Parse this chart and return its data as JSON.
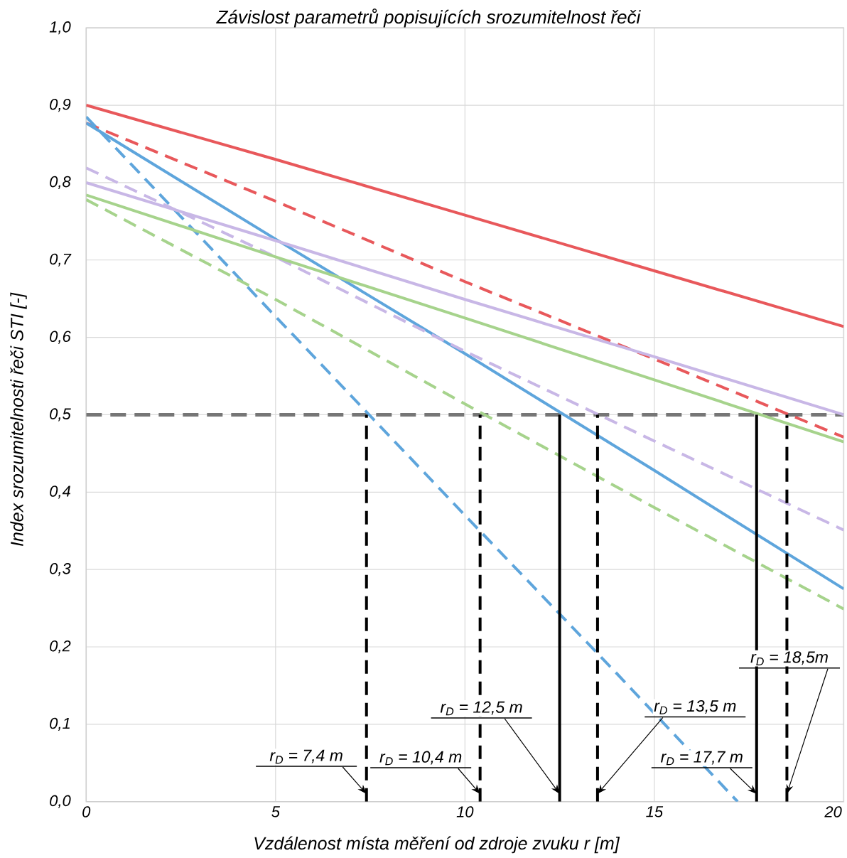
{
  "chart_data": {
    "type": "line",
    "title": "Závislost parametrů popisujících srozumitelnost řeči",
    "xlabel": "Vzdálenost místa měření od zdroje zvuku r [m]",
    "ylabel": "Index srozumitelnosti řeči STI [-]",
    "xlim": [
      0,
      20
    ],
    "xticks": [
      0,
      5,
      10,
      15,
      20
    ],
    "ylim": [
      0,
      1
    ],
    "yticks": [
      {
        "value": 0,
        "label": "0,0"
      },
      {
        "value": 0.1,
        "label": "0,1"
      },
      {
        "value": 0.2,
        "label": "0,2"
      },
      {
        "value": 0.3,
        "label": "0,3"
      },
      {
        "value": 0.4,
        "label": "0,4"
      },
      {
        "value": 0.5,
        "label": "0,5"
      },
      {
        "value": 0.6,
        "label": "0,6"
      },
      {
        "value": 0.7,
        "label": "0,7"
      },
      {
        "value": 0.8,
        "label": "0,8"
      },
      {
        "value": 0.9,
        "label": "0,9"
      },
      {
        "value": 1,
        "label": "1,0"
      }
    ],
    "grid": true,
    "series": [
      {
        "color": "#e8585b",
        "line_style": "solid",
        "x": [
          0,
          5,
          10,
          15,
          20
        ],
        "values": [
          0.9,
          0.83,
          0.758,
          0.686,
          0.614
        ]
      },
      {
        "color": "#e8585b",
        "line_style": "dashed",
        "x": [
          0,
          5,
          10,
          15,
          20
        ],
        "values": [
          0.877,
          0.776,
          0.672,
          0.572,
          0.471
        ]
      },
      {
        "color": "#5ea5dc",
        "line_style": "solid",
        "x": [
          0,
          5,
          10,
          15,
          20
        ],
        "values": [
          0.877,
          0.727,
          0.579,
          0.428,
          0.275
        ]
      },
      {
        "color": "#5ea5dc",
        "line_style": "dashed",
        "x": [
          0,
          5,
          10,
          14,
          17.2
        ],
        "values": [
          0.885,
          0.627,
          0.37,
          0.166,
          0
        ]
      },
      {
        "color": "#c8b7e6",
        "line_style": "solid",
        "x": [
          0,
          5,
          10,
          15,
          20
        ],
        "values": [
          0.8,
          0.725,
          0.649,
          0.575,
          0.5
        ]
      },
      {
        "color": "#c8b7e6",
        "line_style": "dashed",
        "x": [
          0,
          5,
          10,
          15,
          20
        ],
        "values": [
          0.819,
          0.704,
          0.582,
          0.466,
          0.351
        ]
      },
      {
        "color": "#a6d38c",
        "line_style": "solid",
        "x": [
          0,
          5,
          10,
          15,
          20
        ],
        "values": [
          0.784,
          0.704,
          0.625,
          0.545,
          0.465
        ]
      },
      {
        "color": "#a6d38c",
        "line_style": "dashed",
        "x": [
          0,
          5,
          10,
          15,
          20
        ],
        "values": [
          0.778,
          0.649,
          0.514,
          0.38,
          0.249
        ]
      },
      {
        "color": "#000000",
        "line_style": "dashed",
        "x": [
          7.4,
          7.4
        ],
        "values": [
          0,
          0.5
        ]
      },
      {
        "color": "#000000",
        "line_style": "dashed",
        "x": [
          10.4,
          10.4
        ],
        "values": [
          0,
          0.5
        ]
      },
      {
        "color": "#000000",
        "line_style": "solid",
        "x": [
          12.5,
          12.5
        ],
        "values": [
          0,
          0.5
        ]
      },
      {
        "color": "#000000",
        "line_style": "dashed",
        "x": [
          13.5,
          13.5
        ],
        "values": [
          0,
          0.5
        ]
      },
      {
        "color": "#000000",
        "line_style": "solid",
        "x": [
          17.7,
          17.7
        ],
        "values": [
          0,
          0.5
        ]
      },
      {
        "color": "#000000",
        "line_style": "dashed",
        "x": [
          18.5,
          18.5
        ],
        "values": [
          0,
          0.5
        ]
      }
    ],
    "ref_lines": [
      {
        "axis": "y",
        "value": 0.5,
        "color": "#767676",
        "line_style": "dashed"
      }
    ],
    "annotations": [
      {
        "text": "r$_{D}$ = 7,4 m",
        "x": 7.4,
        "y": 0.01
      },
      {
        "text": "r$_{D}$ = 10,4 m",
        "x": 10.4,
        "y": 0.01
      },
      {
        "text": "r$_{D}$ = 12,5 m",
        "x": 12.5,
        "y": 0.01
      },
      {
        "text": "r$_{D}$ = 13,5 m",
        "x": 13.5,
        "y": 0.01
      },
      {
        "text": "r$_{D}$ = 17,7 m",
        "x": 17.7,
        "y": 0.01
      },
      {
        "text": "r$_{D}$ = 18,5m",
        "x": 18.5,
        "y": 0.01
      }
    ]
  }
}
